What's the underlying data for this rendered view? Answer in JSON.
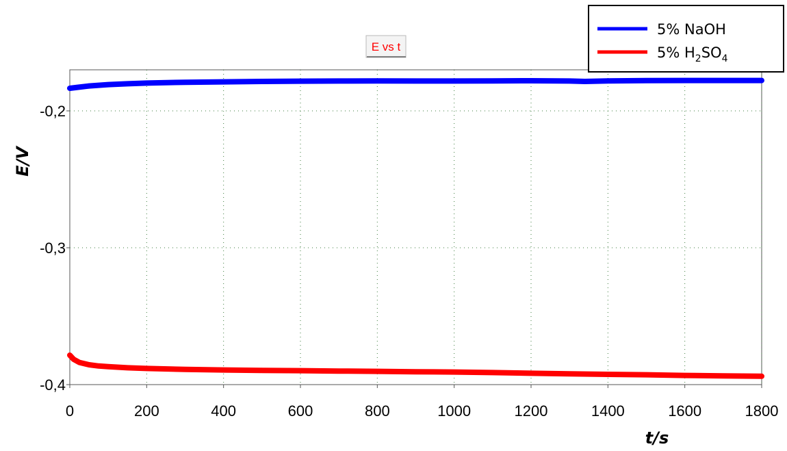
{
  "chart_data": {
    "type": "line",
    "title": "E vs t",
    "xlabel": "t/s",
    "ylabel": "E/V",
    "xlim": [
      0,
      1800
    ],
    "ylim": [
      -0.4,
      -0.17
    ],
    "x_ticks": [
      0,
      200,
      400,
      600,
      800,
      1000,
      1200,
      1400,
      1600,
      1800
    ],
    "y_ticks": [
      -0.2,
      -0.3,
      -0.4
    ],
    "y_tick_labels": [
      "-0,2",
      "-0,3",
      "-0,4"
    ],
    "grid": true,
    "legend_position": "top-right",
    "series": [
      {
        "name": "5% NaOH",
        "color": "#0000ff",
        "x": [
          0,
          20,
          50,
          100,
          150,
          200,
          300,
          400,
          500,
          600,
          700,
          800,
          900,
          1000,
          1100,
          1200,
          1300,
          1340,
          1400,
          1500,
          1600,
          1700,
          1800
        ],
        "y": [
          -0.1835,
          -0.1828,
          -0.1818,
          -0.1808,
          -0.1802,
          -0.1797,
          -0.1791,
          -0.1788,
          -0.1785,
          -0.1783,
          -0.1782,
          -0.1781,
          -0.1782,
          -0.1782,
          -0.1781,
          -0.178,
          -0.1782,
          -0.1785,
          -0.1781,
          -0.1779,
          -0.1778,
          -0.1778,
          -0.1778
        ]
      },
      {
        "name": "5% H2SO4",
        "name_parts": {
          "base": "5% H",
          "sub1": "2",
          "mid": "SO",
          "sub2": "4"
        },
        "color": "#ff0000",
        "x": [
          0,
          10,
          25,
          50,
          75,
          100,
          150,
          200,
          300,
          400,
          500,
          600,
          700,
          800,
          900,
          1000,
          1100,
          1200,
          1300,
          1400,
          1500,
          1600,
          1700,
          1800
        ],
        "y": [
          -0.3785,
          -0.3815,
          -0.3838,
          -0.3855,
          -0.3864,
          -0.3869,
          -0.3877,
          -0.3882,
          -0.3889,
          -0.3893,
          -0.3896,
          -0.3898,
          -0.3901,
          -0.3903,
          -0.3906,
          -0.3908,
          -0.3912,
          -0.3917,
          -0.3921,
          -0.3925,
          -0.3928,
          -0.3933,
          -0.3936,
          -0.3939
        ]
      }
    ]
  }
}
